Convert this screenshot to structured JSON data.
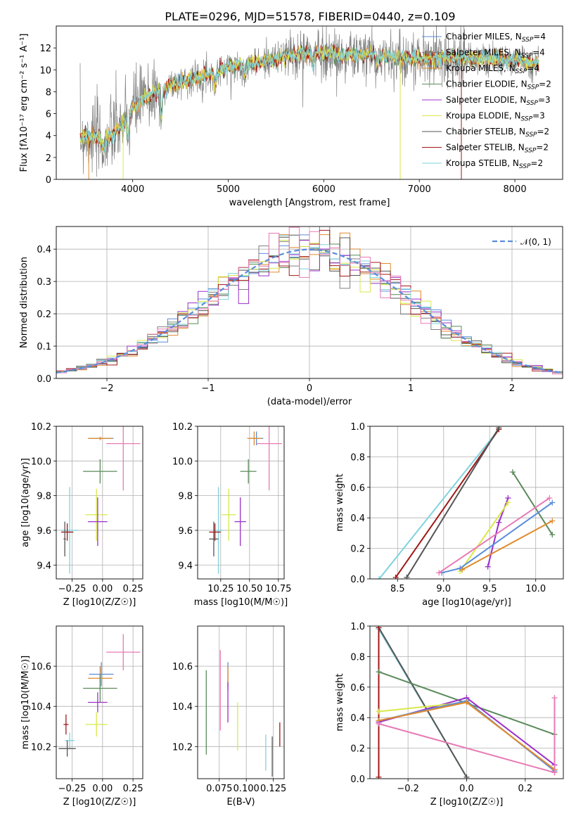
{
  "figure_title": "PLATE=0296, MJD=51578, FIBERID=0440, z=0.109",
  "colors": {
    "Chabrier MILES": "#5b8dd9",
    "Salpeter MILES": "#7f7f7f",
    "Kroupa MILES": "#e08a2c",
    "Chabrier ELODIE": "#5a8a5a",
    "Salpeter ELODIE": "#9b30c8",
    "Kroupa ELODIE": "#d9e84a",
    "Chabrier STELIB": "#555555",
    "Salpeter STELIB": "#a01818",
    "Kroupa STELIB": "#7fd3de",
    "pink": "#e87ab5",
    "normal": "#5b8dd9"
  },
  "chart_data": [
    {
      "id": "spectrum",
      "type": "line",
      "title": "PLATE=0296, MJD=51578, FIBERID=0440, z=0.109",
      "xlabel": "wavelength [Angstrom, rest frame]",
      "ylabel": "Flux [fλ10⁻¹⁷ erg cm⁻² s⁻¹ A⁻¹]",
      "xlim": [
        3200,
        8500
      ],
      "ylim": [
        0,
        14
      ],
      "xticks": [
        "4000",
        "5000",
        "6000",
        "7000",
        "8000"
      ],
      "yticks": [
        "0",
        "2",
        "4",
        "6",
        "8",
        "10",
        "12"
      ],
      "legend_position": "top-right",
      "legend": [
        {
          "name": "Chabrier MILES",
          "sub": "N",
          "subscript": "SSP",
          "n": "=4"
        },
        {
          "name": "Salpeter MILES",
          "sub": "N",
          "subscript": "SSP",
          "n": "=4"
        },
        {
          "name": "Kroupa MILES",
          "sub": "N",
          "subscript": "SSP",
          "n": "=4"
        },
        {
          "name": "Chabrier ELODIE",
          "sub": "N",
          "subscript": "SSP",
          "n": "=2"
        },
        {
          "name": "Salpeter ELODIE",
          "sub": "N",
          "subscript": "SSP",
          "n": "=3"
        },
        {
          "name": "Kroupa ELODIE",
          "sub": "N",
          "subscript": "SSP",
          "n": "=3"
        },
        {
          "name": "Chabrier STELIB",
          "sub": "N",
          "subscript": "SSP",
          "n": "=2"
        },
        {
          "name": "Salpeter STELIB",
          "sub": "N",
          "subscript": "SSP",
          "n": "=2"
        },
        {
          "name": "Kroupa STELIB",
          "sub": "N",
          "subscript": "SSP",
          "n": "=2"
        }
      ],
      "continuum": [
        [
          3450,
          4.0
        ],
        [
          3600,
          3.8
        ],
        [
          3700,
          3.6
        ],
        [
          3850,
          4.5
        ],
        [
          4000,
          6.5
        ],
        [
          4200,
          7.8
        ],
        [
          4400,
          8.6
        ],
        [
          4600,
          9.1
        ],
        [
          4800,
          9.6
        ],
        [
          5000,
          10.2
        ],
        [
          5300,
          10.6
        ],
        [
          5600,
          11.2
        ],
        [
          5900,
          11.6
        ],
        [
          6200,
          11.3
        ],
        [
          6500,
          11.4
        ],
        [
          6800,
          11.0
        ],
        [
          7100,
          11.1
        ],
        [
          7400,
          11.1
        ],
        [
          7700,
          11.0
        ],
        [
          8000,
          10.8
        ],
        [
          8250,
          10.6
        ]
      ],
      "dips": [
        [
          3700,
          1.0
        ],
        [
          3950,
          2.0
        ],
        [
          4300,
          2.5
        ],
        [
          4860,
          1.2
        ],
        [
          5175,
          1.0
        ],
        [
          5890,
          1.2
        ],
        [
          6563,
          1.0
        ]
      ]
    },
    {
      "id": "residuals",
      "type": "bar",
      "xlabel": "(data-model)/error",
      "ylabel": "Normed distribution",
      "xlim": [
        -2.5,
        2.5
      ],
      "ylim": [
        0,
        0.47
      ],
      "xticks": [
        "−2",
        "−1",
        "0",
        "1",
        "2"
      ],
      "yticks": [
        "0.0",
        "0.1",
        "0.2",
        "0.3",
        "0.4"
      ],
      "legend": "𝒩(0, 1)",
      "legend_position": "top-right",
      "bin_width": 0.1,
      "series_colors": [
        "Chabrier MILES",
        "Salpeter MILES",
        "Kroupa MILES",
        "Chabrier ELODIE",
        "Salpeter ELODIE",
        "Kroupa ELODIE",
        "Chabrier STELIB",
        "Salpeter STELIB",
        "Kroupa STELIB",
        "pink"
      ]
    },
    {
      "id": "age_vs_Z",
      "type": "scatter",
      "xlabel": "Z [log10(Z/Z☉)]",
      "ylabel": "age [log10(age/yr)]",
      "xlim": [
        -0.38,
        0.33
      ],
      "ylim": [
        9.32,
        10.2
      ],
      "xticks": [
        "−0.25",
        "0.00",
        "0.25"
      ],
      "yticks": [
        "9.4",
        "9.6",
        "9.8",
        "10.0",
        "10.2"
      ],
      "points": [
        {
          "c": "Chabrier MILES",
          "x": -0.01,
          "xe": 0.1,
          "y": 10.13,
          "ye": 0.0
        },
        {
          "c": "Kroupa MILES",
          "x": -0.02,
          "xe": 0.1,
          "y": 10.13,
          "ye": 0.01
        },
        {
          "c": "pink",
          "x": 0.17,
          "xe": 0.14,
          "y": 10.1,
          "ye": 0.27
        },
        {
          "c": "Chabrier ELODIE",
          "x": -0.02,
          "xe": 0.14,
          "y": 9.94,
          "ye": 0.07
        },
        {
          "c": "Kroupa ELODIE",
          "x": -0.05,
          "xe": 0.09,
          "y": 9.69,
          "ye": 0.15
        },
        {
          "c": "Salpeter ELODIE",
          "x": -0.04,
          "xe": 0.08,
          "y": 9.65,
          "ye": 0.14
        },
        {
          "c": "Kroupa STELIB",
          "x": -0.27,
          "xe": 0.07,
          "y": 9.6,
          "ye": 0.25
        },
        {
          "c": "Salpeter STELIB",
          "x": -0.29,
          "xe": 0.05,
          "y": 9.59,
          "ye": 0.05
        },
        {
          "c": "Chabrier STELIB",
          "x": -0.31,
          "xe": 0.01,
          "y": 9.55,
          "ye": 0.1
        }
      ]
    },
    {
      "id": "age_vs_mass",
      "type": "scatter",
      "xlabel": "mass [log10(M/M☉)]",
      "ylabel": "",
      "xlim": [
        10.05,
        10.8
      ],
      "ylim": [
        9.32,
        10.2
      ],
      "xticks": [
        "10.25",
        "10.50",
        "10.75"
      ],
      "yticks": [
        "9.4",
        "9.6",
        "9.8",
        "10.0",
        "10.2"
      ],
      "points": [
        {
          "c": "Chabrier MILES",
          "x": 10.56,
          "xe": 0.06,
          "y": 10.13,
          "ye": 0.04
        },
        {
          "c": "Kroupa MILES",
          "x": 10.54,
          "xe": 0.06,
          "y": 10.13,
          "ye": 0.04
        },
        {
          "c": "pink",
          "x": 10.67,
          "xe": 0.11,
          "y": 10.1,
          "ye": 0.27
        },
        {
          "c": "Chabrier ELODIE",
          "x": 10.49,
          "xe": 0.07,
          "y": 9.94,
          "ye": 0.07
        },
        {
          "c": "Kroupa ELODIE",
          "x": 10.32,
          "xe": 0.06,
          "y": 9.69,
          "ye": 0.15
        },
        {
          "c": "Salpeter ELODIE",
          "x": 10.42,
          "xe": 0.05,
          "y": 9.65,
          "ye": 0.14
        },
        {
          "c": "Kroupa STELIB",
          "x": 10.23,
          "xe": 0.04,
          "y": 9.6,
          "ye": 0.25
        },
        {
          "c": "Salpeter STELIB",
          "x": 10.2,
          "xe": 0.05,
          "y": 9.59,
          "ye": 0.05
        },
        {
          "c": "Chabrier STELIB",
          "x": 10.19,
          "xe": 0.04,
          "y": 9.55,
          "ye": 0.1
        }
      ]
    },
    {
      "id": "mw_vs_age",
      "type": "line",
      "xlabel": "age [log10(age/yr)]",
      "ylabel": "mass weight",
      "xlim": [
        8.2,
        10.3
      ],
      "ylim": [
        0,
        1
      ],
      "xticks": [
        "8.5",
        "9.0",
        "9.5",
        "10.0"
      ],
      "yticks": [
        "0.0",
        "0.2",
        "0.4",
        "0.6",
        "0.8",
        "1.0"
      ],
      "series": [
        {
          "c": "Kroupa STELIB",
          "points": [
            [
              8.3,
              0.0
            ],
            [
              9.6,
              0.98
            ]
          ]
        },
        {
          "c": "Salpeter STELIB",
          "points": [
            [
              8.48,
              0.01
            ],
            [
              9.6,
              0.98
            ]
          ]
        },
        {
          "c": "Chabrier STELIB",
          "points": [
            [
              8.6,
              0.01
            ],
            [
              9.6,
              0.99
            ]
          ]
        },
        {
          "c": "Chabrier ELODIE",
          "points": [
            [
              9.75,
              0.7
            ],
            [
              10.18,
              0.29
            ]
          ]
        },
        {
          "c": "Salpeter ELODIE",
          "points": [
            [
              9.48,
              0.08
            ],
            [
              9.6,
              0.37
            ],
            [
              9.7,
              0.53
            ]
          ]
        },
        {
          "c": "Kroupa ELODIE",
          "points": [
            [
              9.18,
              0.05
            ],
            [
              9.7,
              0.5
            ]
          ]
        },
        {
          "c": "Chabrier MILES",
          "points": [
            [
              8.98,
              0.04
            ],
            [
              9.18,
              0.07
            ],
            [
              10.18,
              0.5
            ]
          ]
        },
        {
          "c": "Kroupa MILES",
          "points": [
            [
              9.2,
              0.06
            ],
            [
              10.18,
              0.38
            ]
          ]
        },
        {
          "c": "pink",
          "points": [
            [
              8.95,
              0.04
            ],
            [
              10.15,
              0.53
            ]
          ]
        }
      ]
    },
    {
      "id": "mass_vs_Z",
      "type": "scatter",
      "xlabel": "Z [log10(Z/Z☉)]",
      "ylabel": "mass [log10(M/M☉)]",
      "xlim": [
        -0.38,
        0.33
      ],
      "ylim": [
        10.04,
        10.8
      ],
      "xticks": [
        "−0.25",
        "0.00",
        "0.25"
      ],
      "yticks": [
        "10.2",
        "10.4",
        "10.6"
      ],
      "points": [
        {
          "c": "pink",
          "x": 0.17,
          "xe": 0.14,
          "y": 10.67,
          "ye": 0.09
        },
        {
          "c": "Chabrier MILES",
          "x": -0.01,
          "xe": 0.1,
          "y": 10.56,
          "ye": 0.06
        },
        {
          "c": "Kroupa MILES",
          "x": -0.02,
          "xe": 0.1,
          "y": 10.54,
          "ye": 0.06
        },
        {
          "c": "Chabrier ELODIE",
          "x": -0.02,
          "xe": 0.14,
          "y": 10.49,
          "ye": 0.07
        },
        {
          "c": "Salpeter ELODIE",
          "x": -0.04,
          "xe": 0.08,
          "y": 10.42,
          "ye": 0.05
        },
        {
          "c": "Kroupa ELODIE",
          "x": -0.05,
          "xe": 0.09,
          "y": 10.31,
          "ye": 0.06
        },
        {
          "c": "Salpeter STELIB",
          "x": -0.3,
          "xe": 0.02,
          "y": 10.31,
          "ye": 0.05
        },
        {
          "c": "Kroupa STELIB",
          "x": -0.27,
          "xe": 0.04,
          "y": 10.23,
          "ye": 0.04
        },
        {
          "c": "Chabrier STELIB",
          "x": -0.29,
          "xe": 0.07,
          "y": 10.19,
          "ye": 0.04
        }
      ]
    },
    {
      "id": "mass_vs_ebv",
      "type": "scatter",
      "xlabel": "E(B-V)",
      "ylabel": "",
      "xlim": [
        0.055,
        0.135
      ],
      "ylim": [
        10.04,
        10.8
      ],
      "xticks": [
        "0.075",
        "0.100",
        "0.125"
      ],
      "yticks": [
        "10.2",
        "10.4",
        "10.6"
      ],
      "points": [
        {
          "c": "Chabrier ELODIE",
          "x": 0.063,
          "y": 10.37,
          "ye": 0.21
        },
        {
          "c": "pink",
          "x": 0.076,
          "y": 10.48,
          "ye": 0.2
        },
        {
          "c": "Chabrier MILES",
          "x": 0.083,
          "y": 10.56,
          "ye": 0.06
        },
        {
          "c": "Kroupa MILES",
          "x": 0.083,
          "y": 10.54,
          "ye": 0.06
        },
        {
          "c": "Salpeter ELODIE",
          "x": 0.083,
          "y": 10.42,
          "ye": 0.1
        },
        {
          "c": "Kroupa ELODIE",
          "x": 0.092,
          "y": 10.3,
          "ye": 0.12
        },
        {
          "c": "Kroupa STELIB",
          "x": 0.118,
          "y": 10.17,
          "ye": 0.09
        },
        {
          "c": "Chabrier STELIB",
          "x": 0.124,
          "y": 10.15,
          "ye": 0.1
        },
        {
          "c": "Salpeter STELIB",
          "x": 0.131,
          "y": 10.26,
          "ye": 0.06
        }
      ]
    },
    {
      "id": "mw_vs_Z",
      "type": "line",
      "xlabel": "Z [log10(Z/Z☉)]",
      "ylabel": "mass weight",
      "xlim": [
        -0.33,
        0.33
      ],
      "ylim": [
        0,
        1
      ],
      "xticks": [
        "−0.2",
        "0.0",
        "0.2"
      ],
      "yticks": [
        "0.0",
        "0.2",
        "0.4",
        "0.6",
        "0.8",
        "1.0"
      ],
      "series": [
        {
          "c": "Kroupa STELIB",
          "points": [
            [
              -0.3,
              0.98
            ],
            [
              0.0,
              0.01
            ]
          ]
        },
        {
          "c": "Chabrier STELIB",
          "points": [
            [
              -0.3,
              0.99
            ],
            [
              0.0,
              0.01
            ]
          ]
        },
        {
          "c": "Salpeter STELIB",
          "points": [
            [
              -0.3,
              0.01
            ],
            [
              -0.3,
              0.99
            ]
          ]
        },
        {
          "c": "Chabrier ELODIE",
          "points": [
            [
              -0.3,
              0.7
            ],
            [
              0.3,
              0.29
            ]
          ]
        },
        {
          "c": "Salpeter ELODIE",
          "points": [
            [
              -0.3,
              0.37
            ],
            [
              0.0,
              0.53
            ],
            [
              0.3,
              0.09
            ]
          ]
        },
        {
          "c": "Kroupa ELODIE",
          "points": [
            [
              -0.3,
              0.44
            ],
            [
              0.0,
              0.5
            ],
            [
              0.3,
              0.06
            ]
          ]
        },
        {
          "c": "Chabrier MILES",
          "points": [
            [
              -0.3,
              0.38
            ],
            [
              0.0,
              0.51
            ],
            [
              0.3,
              0.05
            ]
          ]
        },
        {
          "c": "Kroupa MILES",
          "points": [
            [
              -0.3,
              0.38
            ],
            [
              0.0,
              0.5
            ],
            [
              0.3,
              0.06
            ]
          ]
        },
        {
          "c": "pink",
          "points": [
            [
              -0.3,
              0.36
            ],
            [
              0.3,
              0.04
            ]
          ]
        },
        {
          "c": "pink",
          "points": [
            [
              0.3,
              0.04
            ],
            [
              0.3,
              0.53
            ]
          ]
        }
      ]
    }
  ]
}
